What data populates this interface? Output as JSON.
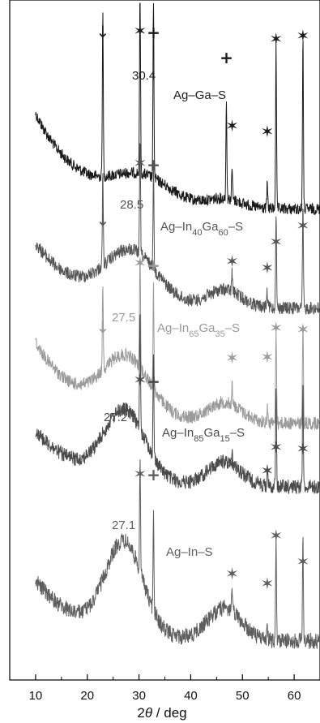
{
  "chart_data": {
    "type": "line",
    "title": "",
    "xlabel_parts": [
      "2",
      "θ",
      " / deg"
    ],
    "ylabel": "",
    "xlim": [
      5,
      65
    ],
    "xticks": [
      10,
      20,
      30,
      40,
      50,
      60
    ],
    "grid": false,
    "legend": "none",
    "series": [
      {
        "name": "Ag–Ga–S",
        "label_parts": [
          {
            "t": "Ag–Ga–S",
            "sub": false
          }
        ],
        "color": "#1a1a1a",
        "broad_peak_label": "30.4",
        "broad_peak_2theta": 30.4,
        "arrows": [
          23
        ],
        "plus": [
          32.8,
          46.9
        ],
        "stars": [
          30.2,
          48.0,
          54.8,
          56.5,
          61.7
        ]
      },
      {
        "name": "Ag–In40Ga60–S",
        "label_parts": [
          {
            "t": "Ag–In",
            "sub": false
          },
          {
            "t": "40",
            "sub": true
          },
          {
            "t": "Ga",
            "sub": false
          },
          {
            "t": "60",
            "sub": true
          },
          {
            "t": "–S",
            "sub": false
          }
        ],
        "color": "#555555",
        "broad_peak_label": "28.5",
        "broad_peak_2theta": 28.5,
        "arrows": [
          23
        ],
        "plus": [
          32.8
        ],
        "stars": [
          30.2,
          48.0,
          54.8,
          56.5,
          61.7
        ]
      },
      {
        "name": "Ag–In65Ga35–S",
        "label_parts": [
          {
            "t": "Ag–In",
            "sub": false
          },
          {
            "t": "65",
            "sub": true
          },
          {
            "t": "Ga",
            "sub": false
          },
          {
            "t": "35",
            "sub": true
          },
          {
            "t": "–S",
            "sub": false
          }
        ],
        "color": "#9a9a9a",
        "broad_peak_label": "27.5",
        "broad_peak_2theta": 27.5,
        "arrows": [
          23
        ],
        "plus": [
          32.8
        ],
        "stars": [
          30.2,
          48.0,
          54.8,
          56.5,
          61.7
        ]
      },
      {
        "name": "Ag–In85Ga15–S",
        "label_parts": [
          {
            "t": "Ag–In",
            "sub": false
          },
          {
            "t": "85",
            "sub": true
          },
          {
            "t": "Ga",
            "sub": false
          },
          {
            "t": "15",
            "sub": true
          },
          {
            "t": "–S",
            "sub": false
          }
        ],
        "color": "#4a4a4a",
        "broad_peak_label": "27.2",
        "broad_peak_2theta": 27.2,
        "arrows": [],
        "plus": [
          32.8
        ],
        "stars": [
          30.2,
          48.0,
          54.8,
          56.5,
          61.7
        ]
      },
      {
        "name": "Ag–In–S",
        "label_parts": [
          {
            "t": "Ag–In–S",
            "sub": false
          }
        ],
        "color": "#5e5e5e",
        "broad_peak_label": "27.1",
        "broad_peak_2theta": 27.1,
        "arrows": [],
        "plus": [
          32.8
        ],
        "stars": [
          30.2,
          48.0,
          54.8,
          56.5,
          61.7
        ]
      }
    ]
  }
}
